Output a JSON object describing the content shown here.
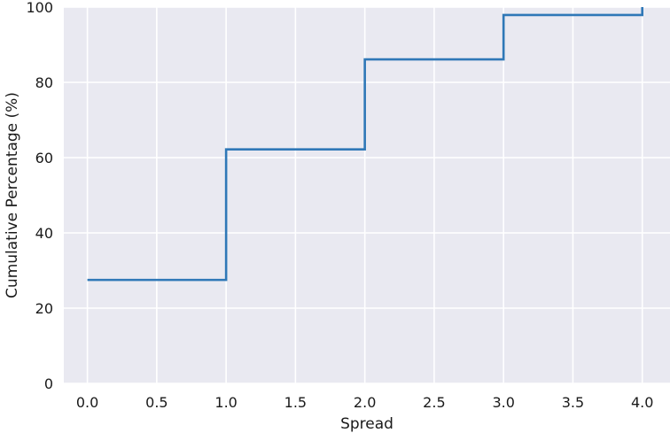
{
  "chart_data": {
    "type": "line",
    "drawstyle": "steps-post",
    "xlabel": "Spread",
    "ylabel": "Cumulative Percentage (%)",
    "xlim": [
      -0.17,
      4.2
    ],
    "ylim": [
      0,
      100
    ],
    "grid": true,
    "background": "#e9e9f1",
    "grid_color": "#ffffff",
    "xticks": [
      0.0,
      0.5,
      1.0,
      1.5,
      2.0,
      2.5,
      3.0,
      3.5,
      4.0
    ],
    "xtick_labels": [
      "0.0",
      "0.5",
      "1.0",
      "1.5",
      "2.0",
      "2.5",
      "3.0",
      "3.5",
      "4.0"
    ],
    "yticks": [
      0,
      20,
      40,
      60,
      80,
      100
    ],
    "ytick_labels": [
      "0",
      "20",
      "40",
      "60",
      "80",
      "100"
    ],
    "series": [
      {
        "color": "#2f78b7",
        "x": [
          0,
          1,
          2,
          3,
          4
        ],
        "y": [
          27.5,
          62.2,
          86.1,
          97.9,
          100
        ]
      }
    ]
  }
}
